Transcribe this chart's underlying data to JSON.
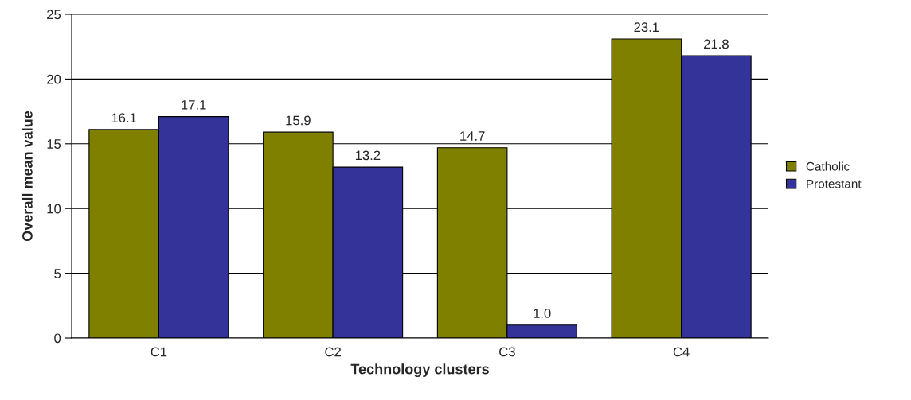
{
  "chart_data": {
    "type": "bar",
    "xlabel": "Technology clusters",
    "ylabel": "Overall mean value",
    "categories": [
      "C1",
      "C2",
      "C3",
      "C4"
    ],
    "series": [
      {
        "name": "Catholic",
        "color": "#808000",
        "values": [
          16.1,
          15.9,
          14.7,
          23.1
        ],
        "value_labels": [
          "16.1",
          "15.9",
          "14.7",
          "23.1"
        ]
      },
      {
        "name": "Protestant",
        "color": "#333399",
        "values": [
          17.1,
          13.2,
          1.0,
          21.8
        ],
        "value_labels": [
          "17.1",
          "13.2",
          "1.0",
          "21.8"
        ]
      }
    ],
    "ylim": [
      0,
      25
    ],
    "yticks": [
      0,
      5,
      10,
      15,
      20,
      25
    ],
    "grid": "y",
    "legend": "right"
  }
}
